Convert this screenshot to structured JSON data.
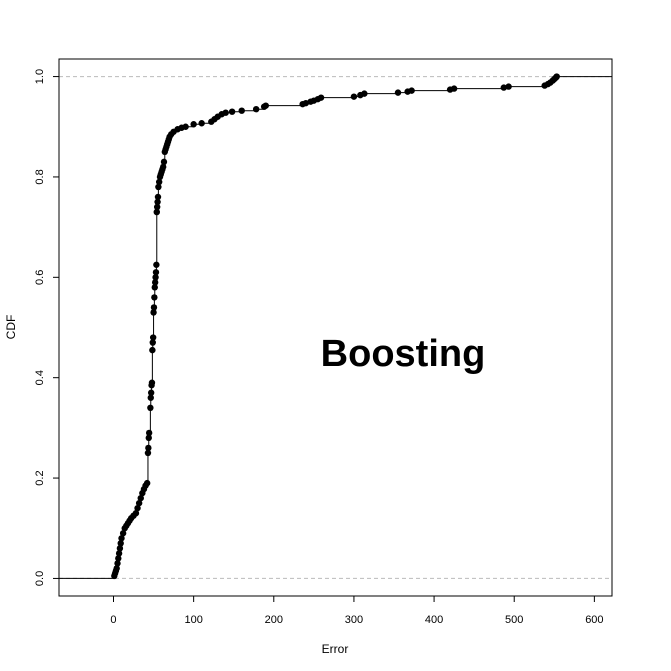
{
  "chart_data": {
    "type": "scatter",
    "subtype": "ecdf",
    "xlabel": "Error",
    "ylabel": "CDF",
    "annotation": "Boosting",
    "xlim": [
      -68,
      622
    ],
    "ylim": [
      -0.035,
      1.035
    ],
    "x_ticks": [
      0,
      100,
      200,
      300,
      400,
      500,
      600
    ],
    "x_tick_labels": [
      "0",
      "100",
      "200",
      "300",
      "400",
      "500",
      "600"
    ],
    "y_ticks": [
      0.0,
      0.2,
      0.4,
      0.6,
      0.8,
      1.0
    ],
    "y_tick_labels": [
      "0.0",
      "0.2",
      "0.4",
      "0.6",
      "0.8",
      "1.0"
    ],
    "reference_lines": [
      0,
      1
    ],
    "grid": false,
    "legend": "none",
    "colors": {
      "points": "#000000",
      "step_line": "#000000",
      "reference_lines": "#bbbbbb"
    },
    "points": [
      [
        1,
        0.005
      ],
      [
        2,
        0.01
      ],
      [
        3,
        0.015
      ],
      [
        4,
        0.02
      ],
      [
        5,
        0.03
      ],
      [
        6,
        0.04
      ],
      [
        7,
        0.05
      ],
      [
        8,
        0.06
      ],
      [
        9,
        0.07
      ],
      [
        10,
        0.08
      ],
      [
        12,
        0.09
      ],
      [
        14,
        0.1
      ],
      [
        16,
        0.105
      ],
      [
        18,
        0.11
      ],
      [
        20,
        0.115
      ],
      [
        22,
        0.12
      ],
      [
        25,
        0.125
      ],
      [
        28,
        0.13
      ],
      [
        30,
        0.14
      ],
      [
        32,
        0.15
      ],
      [
        34,
        0.16
      ],
      [
        36,
        0.17
      ],
      [
        38,
        0.178
      ],
      [
        40,
        0.185
      ],
      [
        42,
        0.19
      ],
      [
        43,
        0.25
      ],
      [
        43.5,
        0.26
      ],
      [
        44,
        0.28
      ],
      [
        44.5,
        0.29
      ],
      [
        46,
        0.34
      ],
      [
        46.5,
        0.36
      ],
      [
        47,
        0.37
      ],
      [
        47.5,
        0.385
      ],
      [
        48,
        0.39
      ],
      [
        48.5,
        0.455
      ],
      [
        49,
        0.47
      ],
      [
        49.5,
        0.48
      ],
      [
        50,
        0.53
      ],
      [
        50.5,
        0.54
      ],
      [
        51,
        0.56
      ],
      [
        51.5,
        0.58
      ],
      [
        52,
        0.59
      ],
      [
        52.5,
        0.6
      ],
      [
        53,
        0.61
      ],
      [
        53.5,
        0.625
      ],
      [
        54,
        0.73
      ],
      [
        54.5,
        0.74
      ],
      [
        55,
        0.75
      ],
      [
        55.5,
        0.76
      ],
      [
        56,
        0.78
      ],
      [
        57,
        0.79
      ],
      [
        58,
        0.8
      ],
      [
        59,
        0.805
      ],
      [
        60,
        0.81
      ],
      [
        61,
        0.815
      ],
      [
        62,
        0.82
      ],
      [
        63,
        0.83
      ],
      [
        64,
        0.85
      ],
      [
        65,
        0.855
      ],
      [
        66,
        0.86
      ],
      [
        67,
        0.865
      ],
      [
        68,
        0.87
      ],
      [
        69,
        0.875
      ],
      [
        70,
        0.88
      ],
      [
        72,
        0.885
      ],
      [
        75,
        0.89
      ],
      [
        80,
        0.895
      ],
      [
        85,
        0.898
      ],
      [
        90,
        0.9
      ],
      [
        100,
        0.905
      ],
      [
        110,
        0.907
      ],
      [
        122,
        0.91
      ],
      [
        126,
        0.915
      ],
      [
        130,
        0.92
      ],
      [
        135,
        0.925
      ],
      [
        140,
        0.928
      ],
      [
        148,
        0.93
      ],
      [
        160,
        0.932
      ],
      [
        178,
        0.935
      ],
      [
        188,
        0.94
      ],
      [
        190,
        0.942
      ],
      [
        236,
        0.945
      ],
      [
        240,
        0.947
      ],
      [
        246,
        0.95
      ],
      [
        250,
        0.952
      ],
      [
        255,
        0.955
      ],
      [
        259,
        0.958
      ],
      [
        300,
        0.96
      ],
      [
        308,
        0.963
      ],
      [
        313,
        0.966
      ],
      [
        355,
        0.968
      ],
      [
        367,
        0.97
      ],
      [
        372,
        0.972
      ],
      [
        420,
        0.974
      ],
      [
        425,
        0.976
      ],
      [
        487,
        0.978
      ],
      [
        493,
        0.98
      ],
      [
        538,
        0.982
      ],
      [
        542,
        0.985
      ],
      [
        545,
        0.988
      ],
      [
        548,
        0.992
      ],
      [
        550,
        0.995
      ],
      [
        552,
        0.998
      ],
      [
        553,
        1.0
      ]
    ]
  }
}
